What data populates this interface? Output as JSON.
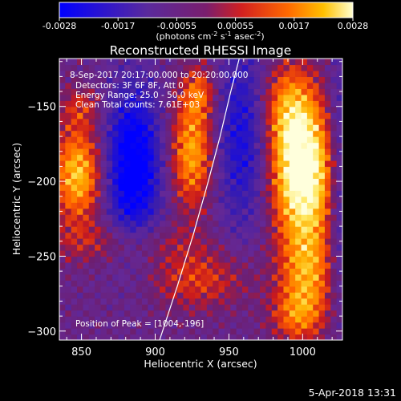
{
  "chart_data": {
    "type": "heatmap",
    "title": "Reconstructed RHESSI Image",
    "xlabel": "Heliocentric X (arcsec)",
    "ylabel": "Heliocentric Y (arcsec)",
    "xlim": [
      835,
      1027
    ],
    "ylim": [
      -306,
      -118
    ],
    "x_ticks": [
      850,
      900,
      950,
      1000
    ],
    "y_ticks": [
      -150,
      -200,
      -250,
      -300
    ],
    "colorbar": {
      "range": [
        -0.0028,
        0.0028
      ],
      "tick_labels": [
        "-0.0028",
        "-0.0017",
        "-0.00055",
        "0.00055",
        "0.0017",
        "0.0028"
      ],
      "unit_prefix": "(photons cm",
      "unit_exp1": "-2",
      "unit_mid1": " s",
      "unit_exp2": "-1",
      "unit_mid2": " asec",
      "unit_exp3": "-2",
      "unit_suffix": ")",
      "colormap": [
        "#0000ff",
        "#3a1fa0",
        "#6f2a8a",
        "#c21f2d",
        "#ff5a00",
        "#ffb400",
        "#ffffc8"
      ]
    },
    "annotations": {
      "time_range": "8-Sep-2017 20:17:00.000 to 20:20:00.000",
      "detectors": "Detectors: 3F 6F 8F, Att 0",
      "energy": "Energy Range: 25.0 - 50.0 keV",
      "clean": "Clean    Total counts: 7.61E+03",
      "peak": "Position of Peak = [1004,-196]"
    },
    "limb_curve": [
      [
        903,
        -306
      ],
      [
        915,
        -270
      ],
      [
        926,
        -235
      ],
      [
        936,
        -200
      ],
      [
        944,
        -170
      ],
      [
        951,
        -141
      ],
      [
        957,
        -118
      ]
    ],
    "emission_regions": [
      {
        "label": "west bright source",
        "center": [
          1000,
          -195
        ],
        "value": 0.0028
      },
      {
        "label": "west lower source",
        "center": [
          1000,
          -262
        ],
        "value": 0.0017
      },
      {
        "label": "limb source",
        "center": [
          925,
          -185
        ],
        "value": 0.0017
      },
      {
        "label": "east source",
        "center": [
          848,
          -195
        ],
        "value": 0.0017
      },
      {
        "label": "negative trough",
        "center": [
          885,
          -190
        ],
        "value": -0.0028
      }
    ]
  },
  "footer_timestamp": "5-Apr-2018 13:31"
}
